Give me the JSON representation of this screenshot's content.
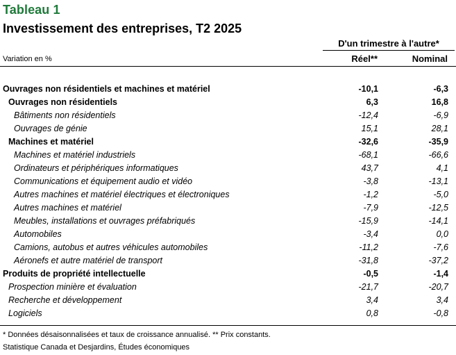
{
  "title": "Tableau 1",
  "subtitle": "Investissement des entreprises, T2 2025",
  "group_header": "D'un trimestre à l'autre*",
  "variation_label": "Variation en %",
  "columns": {
    "reel": "Réel**",
    "nominal": "Nominal"
  },
  "rows": [
    {
      "label": "Ouvrages non résidentiels et machines et matériel",
      "reel": "-10,1",
      "nominal": "-6,3"
    },
    {
      "label": "Ouvrages non résidentiels",
      "reel": "6,3",
      "nominal": "16,8"
    },
    {
      "label": "Bâtiments non résidentiels",
      "reel": "-12,4",
      "nominal": "-6,9"
    },
    {
      "label": "Ouvrages de génie",
      "reel": "15,1",
      "nominal": "28,1"
    },
    {
      "label": "Machines et matériel",
      "reel": "-32,6",
      "nominal": "-35,9"
    },
    {
      "label": "Machines et matériel industriels",
      "reel": "-68,1",
      "nominal": "-66,6"
    },
    {
      "label": "Ordinateurs et périphériques informatiques",
      "reel": "43,7",
      "nominal": "4,1"
    },
    {
      "label": "Communications et équipement audio et vidéo",
      "reel": "-3,8",
      "nominal": "-13,1"
    },
    {
      "label": "Autres machines et matériel électriques et électroniques",
      "reel": "-1,2",
      "nominal": "-5,0"
    },
    {
      "label": "Autres machines et matériel",
      "reel": "-7,9",
      "nominal": "-12,5"
    },
    {
      "label": "Meubles, installations et ouvrages préfabriqués",
      "reel": "-15,9",
      "nominal": "-14,1"
    },
    {
      "label": "Automobiles",
      "reel": "-3,4",
      "nominal": "0,0"
    },
    {
      "label": "Camions, autobus et autres véhicules automobiles",
      "reel": "-11,2",
      "nominal": "-7,6"
    },
    {
      "label": "Aéronefs et autre matériel de transport",
      "reel": "-31,8",
      "nominal": "-37,2"
    },
    {
      "label": "Produits de propriété intellectuelle",
      "reel": "-0,5",
      "nominal": "-1,4"
    },
    {
      "label": "Prospection minière et évaluation",
      "reel": "-21,7",
      "nominal": "-20,7"
    },
    {
      "label": "Recherche et développement",
      "reel": "3,4",
      "nominal": "3,4"
    },
    {
      "label": "Logiciels",
      "reel": "0,8",
      "nominal": "-0,8"
    }
  ],
  "note": "* Données désaisonnalisées et taux de croissance annualisé. ** Prix constants.",
  "source": "Statistique Canada et Desjardins, Études économiques"
}
